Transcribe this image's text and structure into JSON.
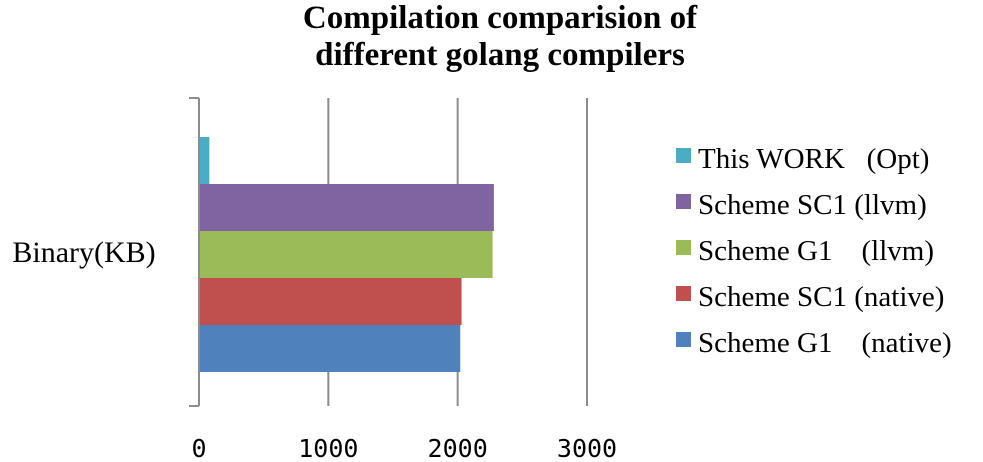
{
  "chart_data": {
    "type": "bar",
    "orientation": "horizontal",
    "title_lines": [
      "Compilation comparision of",
      "different golang compilers"
    ],
    "categories": [
      "Binary(KB)"
    ],
    "series": [
      {
        "name": "Scheme G1    (native)",
        "values": [
          2020
        ],
        "color": "#4F81BD"
      },
      {
        "name": "Scheme SC1 (native)",
        "values": [
          2030
        ],
        "color": "#C0504D"
      },
      {
        "name": "Scheme G1    (llvm)",
        "values": [
          2270
        ],
        "color": "#9BBB59"
      },
      {
        "name": "Scheme SC1 (llvm)",
        "values": [
          2280
        ],
        "color": "#8064A2"
      },
      {
        "name": "This WORK   (Opt)",
        "values": [
          80
        ],
        "color": "#4BACC6"
      }
    ],
    "xticks": [
      "0",
      "1000",
      "2000",
      "3000"
    ],
    "xlim": [
      0,
      3000
    ],
    "grid": true,
    "legend_position": "right"
  }
}
